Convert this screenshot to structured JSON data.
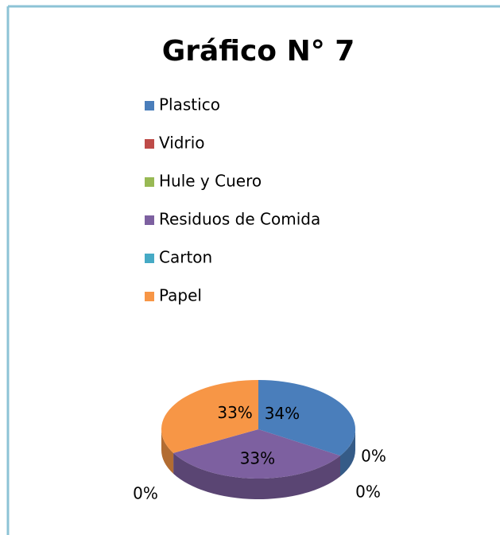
{
  "chart_data": {
    "type": "pie",
    "title": "Gráfico N° 7",
    "categories": [
      "Plastico",
      "Vidrio",
      "Hule y Cuero",
      "Residuos de Comida",
      "Carton",
      "Papel"
    ],
    "values": [
      34,
      0,
      0,
      33,
      0,
      33
    ],
    "value_labels": [
      "34%",
      "0%",
      "0%",
      "33%",
      "0%",
      "33%"
    ],
    "colors": [
      "#4a7ebb",
      "#be4b48",
      "#98b954",
      "#7d60a0",
      "#46aac5",
      "#f79646"
    ],
    "legend": "top"
  }
}
